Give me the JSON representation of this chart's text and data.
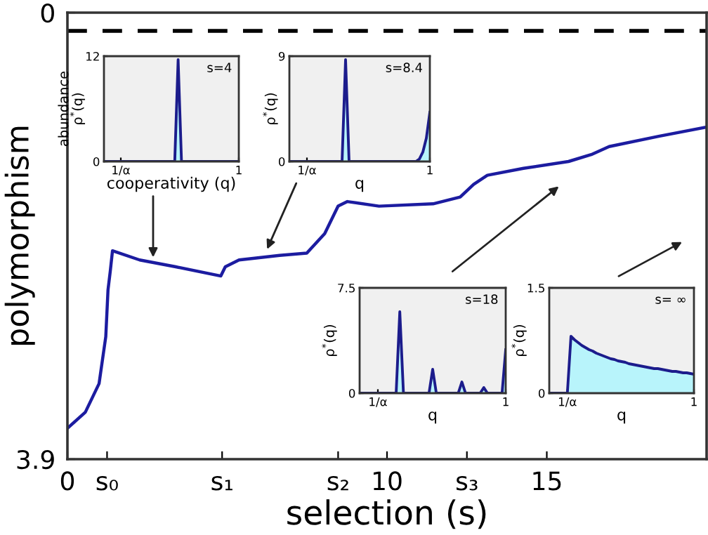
{
  "chart_data": [
    {
      "type": "line",
      "xlabel": "selection (s)",
      "ylabel": "polymorphism",
      "xlim": [
        0,
        20
      ],
      "ylim": [
        3.9,
        0
      ],
      "xticks": [
        0,
        {
          "value": 1.24,
          "label": "s₀"
        },
        {
          "value": 4.84,
          "label": "s₁"
        },
        {
          "value": 8.47,
          "label": "s₂"
        },
        10,
        {
          "value": 12.5,
          "label": "s₃"
        },
        15
      ],
      "yticks": [
        0,
        3.9
      ],
      "grid": false,
      "marker": "none",
      "line_style": "solid",
      "series": [
        {
          "color": "#1c1ca0",
          "x": [
            0,
            0.56,
            0.99,
            1.2,
            1.27,
            1.34,
            1.41,
            2.26,
            3.39,
            4.8,
            4.94,
            5.37,
            6.64,
            7.49,
            8.05,
            8.47,
            8.76,
            9.75,
            11.44,
            12.29,
            12.71,
            13.14,
            14.27,
            15.68,
            16.39,
            16.95,
            18.5,
            20.0
          ],
          "values": [
            3.63,
            3.49,
            3.24,
            2.83,
            2.42,
            2.26,
            2.08,
            2.16,
            2.22,
            2.3,
            2.22,
            2.16,
            2.12,
            2.1,
            1.93,
            1.69,
            1.65,
            1.69,
            1.67,
            1.61,
            1.5,
            1.42,
            1.36,
            1.3,
            1.24,
            1.17,
            1.08,
            1.0
          ]
        }
      ],
      "ref_lines": [
        {
          "axis": "y",
          "value": 0.16,
          "color": "#000000",
          "line_style": "dashed"
        }
      ]
    },
    {
      "type": "area",
      "xlabel": "cooperativity (q)",
      "ylabel": "abundance\nρ$^{*}$(q)",
      "annotations": [
        "s=4"
      ],
      "ylim": [
        0,
        12
      ],
      "yticks": [
        0,
        12
      ],
      "categories": [
        null,
        null,
        null,
        null,
        null,
        "1/α",
        null,
        null,
        null,
        null,
        null,
        null,
        null,
        null,
        null,
        null,
        null,
        null,
        null,
        null,
        null,
        null,
        null,
        null,
        null,
        null,
        null,
        null,
        null,
        null,
        null,
        null,
        null,
        null,
        null,
        null,
        null,
        null,
        null,
        null,
        "1"
      ],
      "series": [
        {
          "color": "#1c1c8c",
          "values": [
            0,
            0,
            0,
            0,
            0,
            0,
            0,
            0,
            0,
            0,
            0,
            0,
            0,
            0,
            0,
            0,
            0,
            0,
            0,
            0,
            0,
            0,
            11.6,
            0,
            0,
            0,
            0,
            0,
            0,
            0,
            0,
            0,
            0,
            0,
            0,
            0,
            0,
            0,
            0,
            0,
            0
          ]
        }
      ]
    },
    {
      "type": "area",
      "xlabel": "q",
      "ylabel": "ρ$^{*}$(q)",
      "annotations": [
        "s=8.4"
      ],
      "ylim": [
        0,
        9
      ],
      "yticks": [
        0,
        9
      ],
      "categories": [
        null,
        null,
        null,
        null,
        null,
        "1/α",
        null,
        null,
        null,
        null,
        null,
        null,
        null,
        null,
        null,
        null,
        null,
        null,
        null,
        null,
        null,
        null,
        null,
        null,
        null,
        null,
        null,
        null,
        null,
        null,
        null,
        null,
        null,
        null,
        null,
        null,
        null,
        null,
        null,
        null,
        "1"
      ],
      "series": [
        {
          "color": "#1c1c8c",
          "values": [
            0,
            0,
            0,
            0,
            0,
            0,
            0,
            0,
            0,
            0,
            0,
            0,
            0,
            0,
            0,
            0,
            8.7,
            0,
            0,
            0,
            0,
            0,
            0,
            0,
            0,
            0,
            0,
            0,
            0,
            0,
            0,
            0,
            0,
            0,
            0,
            0,
            0,
            0.2,
            0.8,
            2.0,
            4.2
          ]
        }
      ]
    },
    {
      "type": "area",
      "xlabel": "q",
      "ylabel": "ρ$^{*}$(q)",
      "annotations": [
        "s=18"
      ],
      "ylim": [
        0,
        7.5
      ],
      "yticks": [
        0,
        7.5
      ],
      "categories": [
        null,
        null,
        null,
        null,
        null,
        "1/α",
        null,
        null,
        null,
        null,
        null,
        null,
        null,
        null,
        null,
        null,
        null,
        null,
        null,
        null,
        null,
        null,
        null,
        null,
        null,
        null,
        null,
        null,
        null,
        null,
        null,
        null,
        null,
        null,
        null,
        null,
        null,
        null,
        null,
        null,
        "1"
      ],
      "series": [
        {
          "color": "#1c1c8c",
          "values": [
            0,
            0,
            0,
            0,
            0,
            0,
            0,
            0,
            0,
            0,
            0,
            5.8,
            0,
            0,
            0,
            0,
            0,
            0,
            0,
            0,
            1.7,
            0,
            0,
            0,
            0,
            0,
            0,
            0,
            0.8,
            0,
            0,
            0,
            0,
            0,
            0.4,
            0,
            0,
            0,
            0,
            0,
            3.1
          ]
        }
      ]
    },
    {
      "type": "area",
      "xlabel": "q",
      "ylabel": "ρ$^{*}$(q)",
      "annotations": [
        "s= ∞"
      ],
      "ylim": [
        0,
        1.5
      ],
      "yticks": [
        0,
        1.5
      ],
      "categories": [
        null,
        null,
        null,
        null,
        null,
        "1/α",
        null,
        null,
        null,
        null,
        null,
        null,
        null,
        null,
        null,
        null,
        null,
        null,
        null,
        null,
        null,
        null,
        null,
        null,
        null,
        null,
        null,
        null,
        null,
        null,
        null,
        null,
        null,
        null,
        null,
        null,
        null,
        null,
        null,
        null,
        "1"
      ],
      "series": [
        {
          "color": "#1c1c8c",
          "values": [
            0,
            0,
            0,
            0,
            0,
            0,
            0.81,
            0.76,
            0.72,
            0.68,
            0.65,
            0.62,
            0.6,
            0.57,
            0.55,
            0.53,
            0.51,
            0.49,
            0.48,
            0.46,
            0.45,
            0.44,
            0.42,
            0.41,
            0.4,
            0.39,
            0.38,
            0.37,
            0.36,
            0.35,
            0.35,
            0.34,
            0.33,
            0.32,
            0.31,
            0.31,
            0.3,
            0.29,
            0.29,
            0.28,
            0.27
          ]
        }
      ]
    }
  ]
}
